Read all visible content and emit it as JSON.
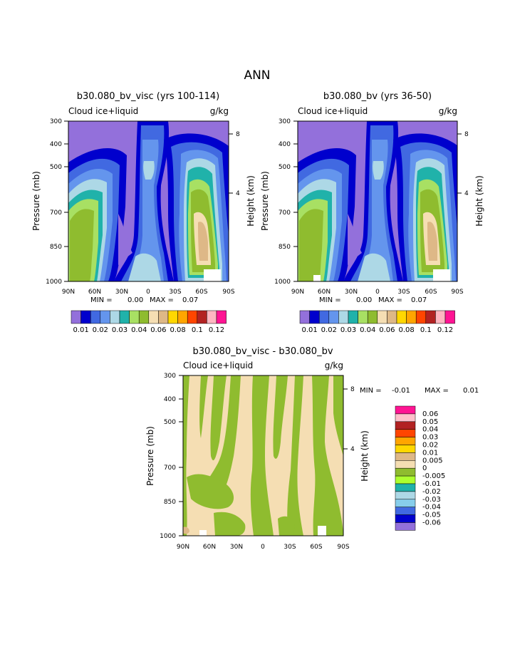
{
  "page": {
    "title": "ANN"
  },
  "colors": {
    "abs_levels": [
      "#9370db",
      "#0000cd",
      "#4169e1",
      "#6495ed",
      "#add8e6",
      "#20b2aa",
      "#a8e063",
      "#8fbc2f",
      "#f5deb3",
      "#deb887",
      "#ffd700",
      "#ffa500",
      "#ff4500",
      "#b22222",
      "#ffb6c1",
      "#ff1493"
    ],
    "diff_levels": [
      "#9370db",
      "#0000cd",
      "#4169e1",
      "#87ceeb",
      "#add8e6",
      "#20b2aa",
      "#adff2f",
      "#8fbc2f",
      "#f5deb3",
      "#deb887",
      "#ffd700",
      "#ffa500",
      "#ff4500",
      "#b22222",
      "#ffc0cb",
      "#ff1493"
    ]
  },
  "chart_data": [
    {
      "type": "heatmap",
      "title": "b30.080_bv_visc (yrs 100-114)",
      "subtitle_left": "Cloud ice+liquid",
      "subtitle_right": "g/kg",
      "ylabel": "Pressure (mb)",
      "ylabel_right": "Height (km)",
      "y_ticks": [
        "300",
        "400",
        "500",
        "700",
        "850",
        "1000"
      ],
      "y_right_ticks": [
        "8",
        "4"
      ],
      "x_ticks": [
        "90N",
        "60N",
        "30N",
        "0",
        "30S",
        "60S",
        "90S"
      ],
      "stats": {
        "min_label": "MIN =",
        "min": "0.00",
        "max_label": "MAX =",
        "max": "0.07"
      },
      "levels": [
        "0.01",
        "0.02",
        "0.03",
        "0.04",
        "0.06",
        "0.08",
        "0.1",
        "0.12"
      ]
    },
    {
      "type": "heatmap",
      "title": "b30.080_bv (yrs 36-50)",
      "subtitle_left": "Cloud ice+liquid",
      "subtitle_right": "g/kg",
      "ylabel": "Pressure (mb)",
      "ylabel_right": "Height (km)",
      "y_ticks": [
        "300",
        "400",
        "500",
        "700",
        "850",
        "1000"
      ],
      "y_right_ticks": [
        "8",
        "4"
      ],
      "x_ticks": [
        "90N",
        "60N",
        "30N",
        "0",
        "30S",
        "60S",
        "90S"
      ],
      "stats": {
        "min_label": "MIN =",
        "min": "0.00",
        "max_label": "MAX =",
        "max": "0.07"
      },
      "levels": [
        "0.01",
        "0.02",
        "0.03",
        "0.04",
        "0.06",
        "0.08",
        "0.1",
        "0.12"
      ]
    },
    {
      "type": "heatmap",
      "title": "b30.080_bv_visc - b30.080_bv",
      "subtitle_left": "Cloud ice+liquid",
      "subtitle_right": "g/kg",
      "ylabel": "Pressure (mb)",
      "ylabel_right": "Height (km)",
      "y_ticks": [
        "300",
        "400",
        "500",
        "700",
        "850",
        "1000"
      ],
      "y_right_ticks": [
        "8",
        "4"
      ],
      "x_ticks": [
        "90N",
        "60N",
        "30N",
        "0",
        "30S",
        "60S",
        "90S"
      ],
      "stats": {
        "min_label": "MIN =",
        "min": "-0.01",
        "max_label": "MAX =",
        "max": "0.01"
      },
      "levels": [
        "0.06",
        "0.05",
        "0.04",
        "0.03",
        "0.02",
        "0.01",
        "0.005",
        "0",
        "-0.005",
        "-0.01",
        "-0.02",
        "-0.03",
        "-0.04",
        "-0.05",
        "-0.06"
      ]
    }
  ]
}
